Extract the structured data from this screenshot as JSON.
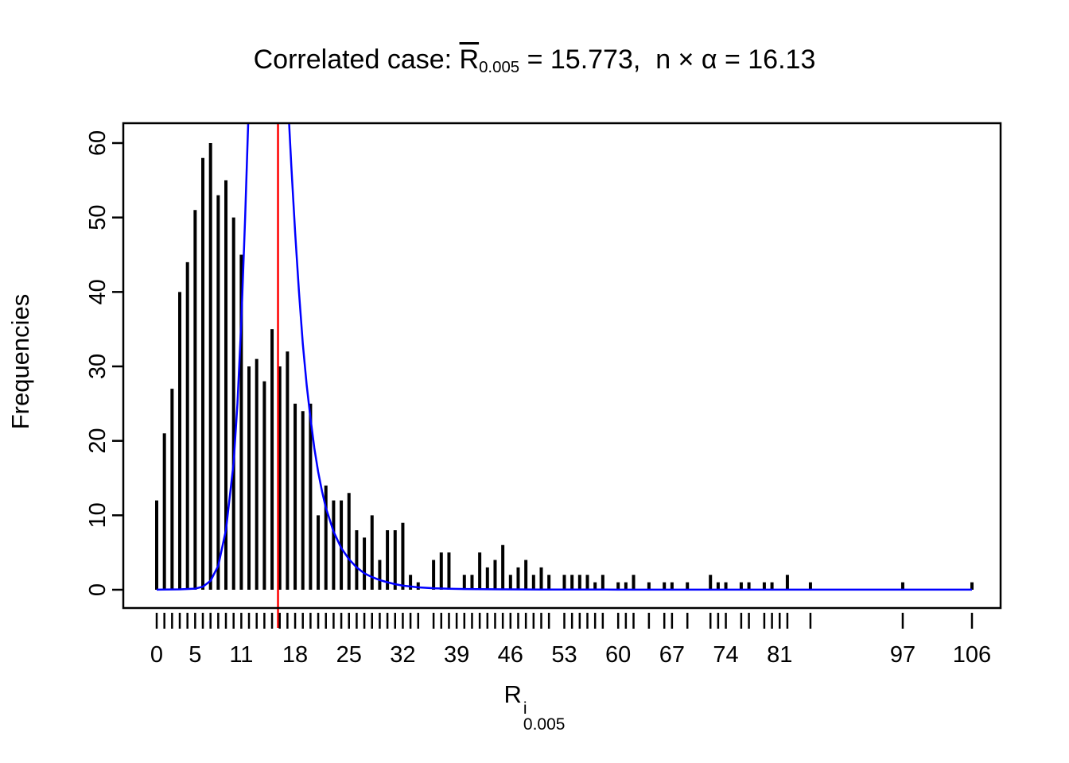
{
  "title_parts": {
    "prefix": "Correlated case: ",
    "r": "R",
    "r_sub": "0.005",
    "suffix": " = 15.773,  n × α = 16.13"
  },
  "xlabel_parts": {
    "base": "R",
    "sup": "i",
    "sub": "0.005"
  },
  "chart_data": {
    "type": "bar",
    "title": "Correlated case: R̄_0.005 = 15.773, n × α = 16.13",
    "xlabel": "R^i_0.005",
    "ylabel": "Frequencies",
    "xlim": [
      0,
      106
    ],
    "ylim": [
      0,
      60
    ],
    "grid": false,
    "y_ticks": [
      0,
      10,
      20,
      30,
      40,
      50,
      60
    ],
    "x_tick_labels": [
      0,
      5,
      11,
      18,
      25,
      32,
      39,
      46,
      53,
      60,
      67,
      74,
      81,
      97,
      106
    ],
    "mean_vline_x": 15.773,
    "bar_color": "#000000",
    "curve_color": "#0000ff",
    "vline_color": "#ff0000",
    "bars": [
      [
        0,
        12
      ],
      [
        1,
        21
      ],
      [
        2,
        27
      ],
      [
        3,
        40
      ],
      [
        4,
        44
      ],
      [
        5,
        51
      ],
      [
        6,
        58
      ],
      [
        7,
        60
      ],
      [
        8,
        53
      ],
      [
        9,
        55
      ],
      [
        10,
        50
      ],
      [
        11,
        45
      ],
      [
        12,
        30
      ],
      [
        13,
        31
      ],
      [
        14,
        28
      ],
      [
        15,
        35
      ],
      [
        16,
        30
      ],
      [
        17,
        32
      ],
      [
        18,
        25
      ],
      [
        19,
        24
      ],
      [
        20,
        25
      ],
      [
        21,
        10
      ],
      [
        22,
        14
      ],
      [
        23,
        12
      ],
      [
        24,
        12
      ],
      [
        25,
        13
      ],
      [
        26,
        8
      ],
      [
        27,
        7
      ],
      [
        28,
        10
      ],
      [
        29,
        4
      ],
      [
        30,
        8
      ],
      [
        31,
        8
      ],
      [
        32,
        9
      ],
      [
        33,
        2
      ],
      [
        34,
        1
      ],
      [
        36,
        4
      ],
      [
        37,
        5
      ],
      [
        38,
        5
      ],
      [
        40,
        2
      ],
      [
        41,
        2
      ],
      [
        42,
        5
      ],
      [
        43,
        3
      ],
      [
        44,
        4
      ],
      [
        45,
        6
      ],
      [
        46,
        2
      ],
      [
        47,
        3
      ],
      [
        48,
        4
      ],
      [
        49,
        2
      ],
      [
        50,
        3
      ],
      [
        51,
        2
      ],
      [
        53,
        2
      ],
      [
        54,
        2
      ],
      [
        55,
        2
      ],
      [
        56,
        2
      ],
      [
        57,
        1
      ],
      [
        58,
        2
      ],
      [
        60,
        1
      ],
      [
        61,
        1
      ],
      [
        62,
        2
      ],
      [
        64,
        1
      ],
      [
        66,
        1
      ],
      [
        67,
        1
      ],
      [
        69,
        1
      ],
      [
        72,
        2
      ],
      [
        73,
        1
      ],
      [
        74,
        1
      ],
      [
        76,
        1
      ],
      [
        77,
        1
      ],
      [
        79,
        1
      ],
      [
        80,
        1
      ],
      [
        82,
        2
      ],
      [
        85,
        1
      ],
      [
        97,
        1
      ],
      [
        106,
        1
      ]
    ],
    "curve": [
      [
        0,
        0.02
      ],
      [
        3,
        0.05
      ],
      [
        5,
        0.15
      ],
      [
        6,
        0.4
      ],
      [
        7,
        1.2
      ],
      [
        8,
        3.2
      ],
      [
        9,
        8
      ],
      [
        10,
        17
      ],
      [
        10.5,
        25
      ],
      [
        11,
        36
      ],
      [
        11.5,
        50
      ],
      [
        12,
        66
      ],
      [
        12.5,
        82
      ],
      [
        13,
        95
      ],
      [
        13.5,
        103
      ],
      [
        14,
        107
      ],
      [
        14.5,
        107
      ],
      [
        15,
        103
      ],
      [
        15.5,
        96
      ],
      [
        16,
        87
      ],
      [
        16.5,
        77
      ],
      [
        17,
        67
      ],
      [
        17.5,
        57
      ],
      [
        18,
        48
      ],
      [
        18.5,
        40
      ],
      [
        19,
        33
      ],
      [
        19.5,
        27.5
      ],
      [
        20,
        23
      ],
      [
        20.5,
        19
      ],
      [
        21,
        15.8
      ],
      [
        21.5,
        13.2
      ],
      [
        22,
        11
      ],
      [
        23,
        7.8
      ],
      [
        24,
        5.6
      ],
      [
        25,
        4.1
      ],
      [
        26,
        3
      ],
      [
        27,
        2.2
      ],
      [
        28,
        1.7
      ],
      [
        29,
        1.3
      ],
      [
        30,
        1
      ],
      [
        31,
        0.75
      ],
      [
        32,
        0.55
      ],
      [
        34,
        0.32
      ],
      [
        36,
        0.2
      ],
      [
        38,
        0.13
      ],
      [
        40,
        0.09
      ],
      [
        45,
        0.05
      ],
      [
        50,
        0.03
      ],
      [
        60,
        0.02
      ],
      [
        80,
        0.01
      ],
      [
        106,
        0.01
      ]
    ]
  }
}
